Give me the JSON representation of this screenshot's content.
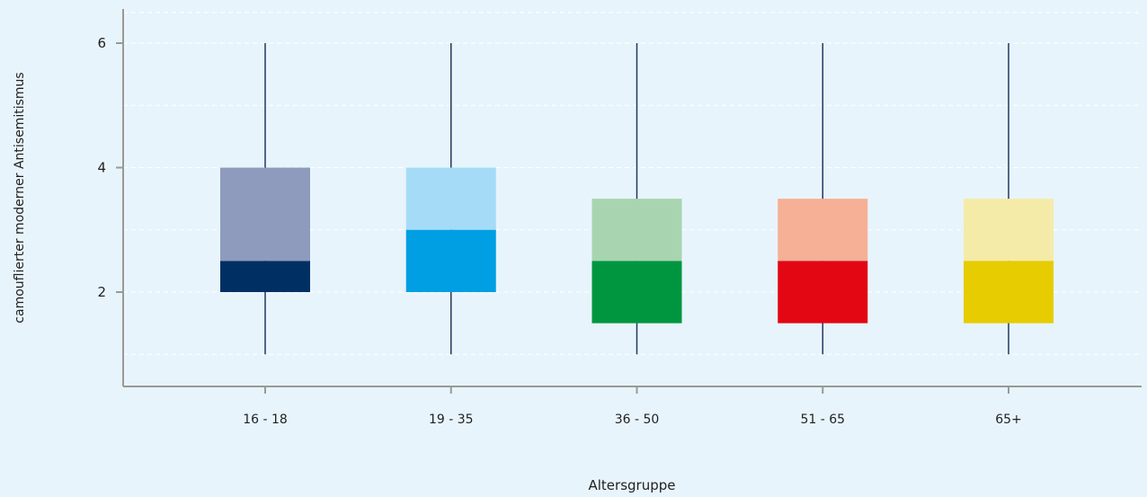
{
  "chart_data": {
    "type": "boxplot",
    "title": "",
    "xlabel": "Altersgruppe",
    "ylabel": "camouflierter moderner Antisemitismus",
    "categories": [
      "16 - 18",
      "19 - 35",
      "36 - 50",
      "51 - 65",
      "65+"
    ],
    "yticks": [
      2,
      4,
      6
    ],
    "ylim": [
      0.6,
      6.4
    ],
    "grid": "horizontal-dashed",
    "boxes": [
      {
        "category": "16 - 18",
        "min": 1.0,
        "q1": 2.0,
        "median": 2.5,
        "q3": 4.0,
        "max": 6.0,
        "lower_color": "#003063",
        "upper_color": "#8e9bbd"
      },
      {
        "category": "19 - 35",
        "min": 1.0,
        "q1": 2.0,
        "median": 3.0,
        "q3": 4.0,
        "max": 6.0,
        "lower_color": "#009fe3",
        "upper_color": "#a5dbf7"
      },
      {
        "category": "36 - 50",
        "min": 1.0,
        "q1": 1.5,
        "median": 2.5,
        "q3": 3.5,
        "max": 6.0,
        "lower_color": "#009640",
        "upper_color": "#a8d5b0"
      },
      {
        "category": "51 - 65",
        "min": 1.0,
        "q1": 1.5,
        "median": 2.5,
        "q3": 3.5,
        "max": 6.0,
        "lower_color": "#e30613",
        "upper_color": "#f6b096"
      },
      {
        "category": "65+",
        "min": 1.0,
        "q1": 1.5,
        "median": 2.5,
        "q3": 3.5,
        "max": 6.0,
        "lower_color": "#e6cc00",
        "upper_color": "#f5eba8"
      }
    ],
    "colors": {
      "background": "#e8f4fc",
      "axis": "#999999",
      "grid": "#ffffff",
      "whisker": "#1f3a5f"
    }
  }
}
